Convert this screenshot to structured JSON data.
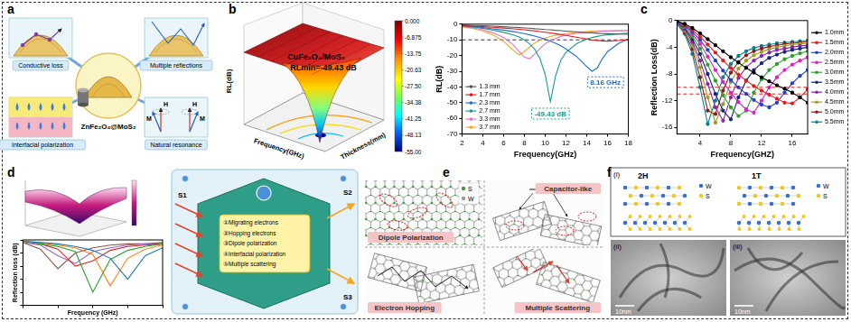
{
  "figure": {
    "panel_labels": [
      "a",
      "b",
      "c",
      "d",
      "e",
      "f"
    ],
    "a": {
      "center": "ZnFe₂O₄@MoS₂",
      "mechanisms": [
        "Conductive loss",
        "Multiple reflections",
        "Interfacial polarization",
        "Natural resonance"
      ],
      "resonance_labels": [
        "H",
        "M"
      ]
    },
    "b_surface": {
      "title": "CuFe₂O₄/MoS₂",
      "annotation": "RLmin=-49.43 dB",
      "z_label": "RL(dB)",
      "x_label": "Frequency(GHz)",
      "y_label": "Thickness(mm)",
      "colorbar_range": [
        -55,
        0
      ],
      "colorbar_ticks": [
        {
          "value": 0,
          "label": "0.000"
        },
        -6.875,
        -13.75,
        -20.63,
        {
          "value": -27.5,
          "label": "-27.50"
        },
        -34.38,
        -41.25,
        -48.13,
        {
          "value": -55,
          "label": "-55.00"
        }
      ]
    },
    "d_diagram": {
      "incident": "S1",
      "outputs": [
        "S2",
        "S3"
      ],
      "mechanisms": [
        "①Migrating electrons",
        "②Hopping electrons",
        "③Dipole polarization",
        "④Interfacial polarization",
        "⑤Multiple scattering"
      ]
    },
    "e": {
      "titles": [
        "Dipole Polarization",
        "Capacitor-like",
        "Electron Hopping",
        "Multiple Scattering"
      ],
      "atoms": [
        "S",
        "W"
      ]
    },
    "f": {
      "sub_labels": [
        "(i)",
        "(ii)",
        "(iii)"
      ],
      "phases": [
        "2H",
        "1T"
      ],
      "atoms": [
        "W",
        "S"
      ],
      "scale_bar": "10nm"
    }
  },
  "chart_data": [
    {
      "type": "line",
      "x_label": "Frequency(GHz)",
      "y_label": "RL(dB)",
      "x": [
        2,
        3,
        4,
        5,
        6,
        7,
        7.5,
        8,
        8.5,
        9,
        9.5,
        10,
        10.5,
        11,
        11.5,
        12,
        13,
        14,
        14.5,
        15,
        15.5,
        16,
        17,
        18
      ],
      "xlim": [
        2,
        18
      ],
      "xticks": [
        2,
        4,
        6,
        8,
        10,
        12,
        14,
        16,
        18
      ],
      "ylim": [
        -70,
        0
      ],
      "yticks": [
        -70,
        -60,
        -50,
        -40,
        -30,
        -20,
        -10,
        0
      ],
      "grid": false,
      "legend": "lower left",
      "marker": "none",
      "hlines": [
        {
          "value": -10,
          "color": "#333333"
        }
      ],
      "annotations": [
        {
          "text": "-49.43 dB",
          "x": 10.5,
          "y": -57,
          "color": "#1a9e8f"
        },
        {
          "text": "8.16 GHz",
          "x": 15.8,
          "y": -37,
          "color": "#1f6fd1"
        }
      ],
      "series": [
        {
          "name": "1.3 mm",
          "color": "#555555",
          "values": [
            -0.5,
            -0.8,
            -1,
            -1.3,
            -1.6,
            -2,
            -2.2,
            -2.4,
            -2.6,
            -2.9,
            -3.1,
            -3.4,
            -3.6,
            -3.9,
            -4.1,
            -4.4,
            -4.9,
            -5.4,
            -5.6,
            -5.8,
            -6,
            -6.1,
            -6.3,
            -6.4
          ]
        },
        {
          "name": "1.7 mm",
          "color": "#e41a1c",
          "values": [
            -0.8,
            -1.2,
            -1.6,
            -2,
            -2.5,
            -3,
            -3.3,
            -3.6,
            -3.9,
            -4.3,
            -4.7,
            -5.1,
            -5.6,
            -6.1,
            -6.6,
            -7.2,
            -8.3,
            -9.5,
            -10,
            -10.4,
            -10.7,
            -10.8,
            -10.5,
            -9.8
          ]
        },
        {
          "name": "2.3 mm",
          "color": "#1f6fd1",
          "values": [
            -1,
            -1.5,
            -2.2,
            -3,
            -3.8,
            -4.8,
            -5.4,
            -6,
            -6.8,
            -7.6,
            -8.5,
            -9.6,
            -10.8,
            -12.2,
            -13.8,
            -15.8,
            -20.5,
            -27,
            -30,
            -28,
            -22,
            -17.5,
            -12.5,
            -9.5
          ]
        },
        {
          "name": "2.7 mm",
          "color": "#1a9e8f",
          "values": [
            -1.2,
            -1.8,
            -2.7,
            -3.8,
            -5.2,
            -7,
            -8.2,
            -10,
            -12.5,
            -16,
            -22,
            -32,
            -49.43,
            -33,
            -23,
            -18,
            -12.5,
            -9.5,
            -8.5,
            -7.8,
            -7.2,
            -6.8,
            -6.2,
            -5.8
          ]
        },
        {
          "name": "3.3 mm",
          "color": "#e377c2",
          "values": [
            -1.5,
            -2.3,
            -3.6,
            -5.5,
            -8.5,
            -13.5,
            -17.5,
            -21,
            -22,
            -19,
            -15.5,
            -12.5,
            -10.5,
            -9,
            -7.8,
            -7,
            -5.9,
            -5.2,
            -4.9,
            -4.7,
            -4.5,
            -4.4,
            -4.2,
            -4.1
          ]
        },
        {
          "name": "3.7 mm",
          "color": "#f5a623",
          "values": [
            -1.7,
            -2.7,
            -4.3,
            -6.8,
            -11,
            -17,
            -19.5,
            -17.5,
            -14.5,
            -12,
            -10.2,
            -8.9,
            -7.9,
            -7.1,
            -6.5,
            -6,
            -5.2,
            -4.7,
            -4.5,
            -4.3,
            -4.2,
            -4.1,
            -4,
            -4
          ]
        }
      ]
    },
    {
      "type": "line",
      "x_label": "Frequency(GHZ)",
      "y_label": "Reflection Loss(dB)",
      "x": [
        1,
        2,
        3,
        4,
        5,
        6,
        7,
        8,
        9,
        10,
        11,
        12,
        13,
        14,
        15,
        16,
        17,
        18
      ],
      "xlim": [
        1,
        18
      ],
      "xticks": [
        4,
        8,
        12,
        16
      ],
      "ylim": [
        -17,
        0
      ],
      "yticks": [
        -16,
        -12,
        -8,
        -4,
        0
      ],
      "grid": false,
      "legend": "right",
      "marker": "circle",
      "hlines": [
        {
          "value": -10,
          "color": "#e41a1c"
        },
        {
          "value": -11,
          "color": "#e41a1c"
        }
      ],
      "series": [
        {
          "name": "1.0mm",
          "color": "#000000",
          "values": [
            -0.1,
            -0.5,
            -1.1,
            -1.9,
            -2.8,
            -3.7,
            -4.6,
            -5.5,
            -6.3,
            -7.1,
            -7.8,
            -8.5,
            -9.1,
            -9.7,
            -10.2,
            -10.8,
            -11.5,
            -12.3
          ]
        },
        {
          "name": "1.5mm",
          "color": "#e41a1c",
          "values": [
            -0.1,
            -0.6,
            -1.4,
            -2.4,
            -3.6,
            -4.8,
            -6,
            -7.1,
            -8.1,
            -9,
            -9.8,
            -10.5,
            -11.1,
            -11.7,
            -12.3,
            -12.4,
            -11.5,
            -10.3
          ]
        },
        {
          "name": "2.0mm",
          "color": "#1f3fd1",
          "values": [
            -0.2,
            -0.7,
            -1.7,
            -2.9,
            -4.4,
            -6,
            -7.5,
            -8.9,
            -10,
            -11,
            -11.9,
            -12.6,
            -13,
            -12.3,
            -10.8,
            -9.4,
            -8.3,
            -7.4
          ]
        },
        {
          "name": "2.5mm",
          "color": "#e020c0",
          "values": [
            -0.2,
            -0.8,
            -2,
            -3.5,
            -5.4,
            -7.4,
            -9.2,
            -10.8,
            -12.2,
            -13.3,
            -13.8,
            -12,
            -10,
            -8.5,
            -7.4,
            -6.6,
            -6,
            -5.5
          ]
        },
        {
          "name": "3.0mm",
          "color": "#2ca02c",
          "values": [
            -0.2,
            -1,
            -2.4,
            -4.2,
            -6.6,
            -9,
            -11.2,
            -13,
            -14.3,
            -13.5,
            -10.8,
            -8.8,
            -7.4,
            -6.5,
            -5.8,
            -5.3,
            -4.9,
            -4.6
          ]
        },
        {
          "name": "3.5mm",
          "color": "#1a237e",
          "values": [
            -0.3,
            -1.1,
            -2.8,
            -5,
            -8,
            -11,
            -13.5,
            -14.8,
            -11.5,
            -9,
            -7.4,
            -6.4,
            -5.6,
            -5.1,
            -4.7,
            -4.4,
            -4.2,
            -4
          ]
        },
        {
          "name": "4.0mm",
          "color": "#8e24aa",
          "values": [
            -0.3,
            -1.3,
            -3.2,
            -6,
            -9.5,
            -13,
            -15,
            -11.5,
            -8.6,
            -7,
            -6,
            -5.3,
            -4.8,
            -4.4,
            -4.2,
            -4,
            -3.8,
            -3.7
          ]
        },
        {
          "name": "4.5mm",
          "color": "#9e9d24",
          "values": [
            -0.4,
            -1.5,
            -3.7,
            -7,
            -11.5,
            -15.3,
            -12.5,
            -9.2,
            -7.2,
            -6,
            -5.2,
            -4.7,
            -4.3,
            -4,
            -3.8,
            -3.6,
            -3.5,
            -3.4
          ]
        },
        {
          "name": "5.0mm",
          "color": "#8b1a1a",
          "values": [
            -0.4,
            -1.7,
            -4.3,
            -8.5,
            -13.5,
            -14,
            -10.5,
            -7.8,
            -6.2,
            -5.2,
            -4.6,
            -4.2,
            -3.9,
            -3.7,
            -3.5,
            -3.4,
            -3.3,
            -3.2
          ]
        },
        {
          "name": "5.5mm",
          "color": "#00838f",
          "values": [
            -0.5,
            -2,
            -5,
            -10,
            -15.5,
            -12,
            -8.5,
            -6.5,
            -5.3,
            -4.6,
            -4.1,
            -3.8,
            -3.6,
            -3.4,
            -3.3,
            -3.2,
            -3.1,
            -3
          ]
        }
      ]
    },
    {
      "type": "line",
      "x_label": "Frequency (GHz)",
      "y_label": "Reflection loss (dB)",
      "x": [
        2,
        4,
        6,
        8,
        10,
        12,
        14,
        16,
        18
      ],
      "xlim": [
        2,
        18
      ],
      "xticks": [
        2,
        6,
        10,
        14,
        18
      ],
      "ylim": [
        -50,
        0
      ],
      "yticks": [
        -50,
        -40,
        -30,
        -20,
        -10,
        0
      ],
      "grid": false,
      "tick_labels": false,
      "marker": "none",
      "series": [
        {
          "color": "#1f77b4",
          "values": [
            -1,
            -2,
            -3,
            -5,
            -8,
            -14,
            -30,
            -12,
            -6
          ]
        },
        {
          "color": "#ff7f0e",
          "values": [
            -1,
            -2,
            -4,
            -6,
            -11,
            -35,
            -14,
            -7,
            -4
          ]
        },
        {
          "color": "#2ca02c",
          "values": [
            -1,
            -3,
            -5,
            -9,
            -40,
            -15,
            -8,
            -5,
            -3
          ]
        },
        {
          "color": "#d62728",
          "values": [
            -1,
            -3,
            -7,
            -20,
            -16,
            -8,
            -5,
            -4,
            -3
          ]
        },
        {
          "color": "#9467bd",
          "values": [
            -2,
            -4,
            -12,
            -18,
            -9,
            -6,
            -4,
            -3,
            -3
          ]
        },
        {
          "color": "#8c564b",
          "values": [
            -2,
            -7,
            -22,
            -10,
            -6,
            -4,
            -3,
            -3,
            -2
          ]
        }
      ]
    }
  ]
}
